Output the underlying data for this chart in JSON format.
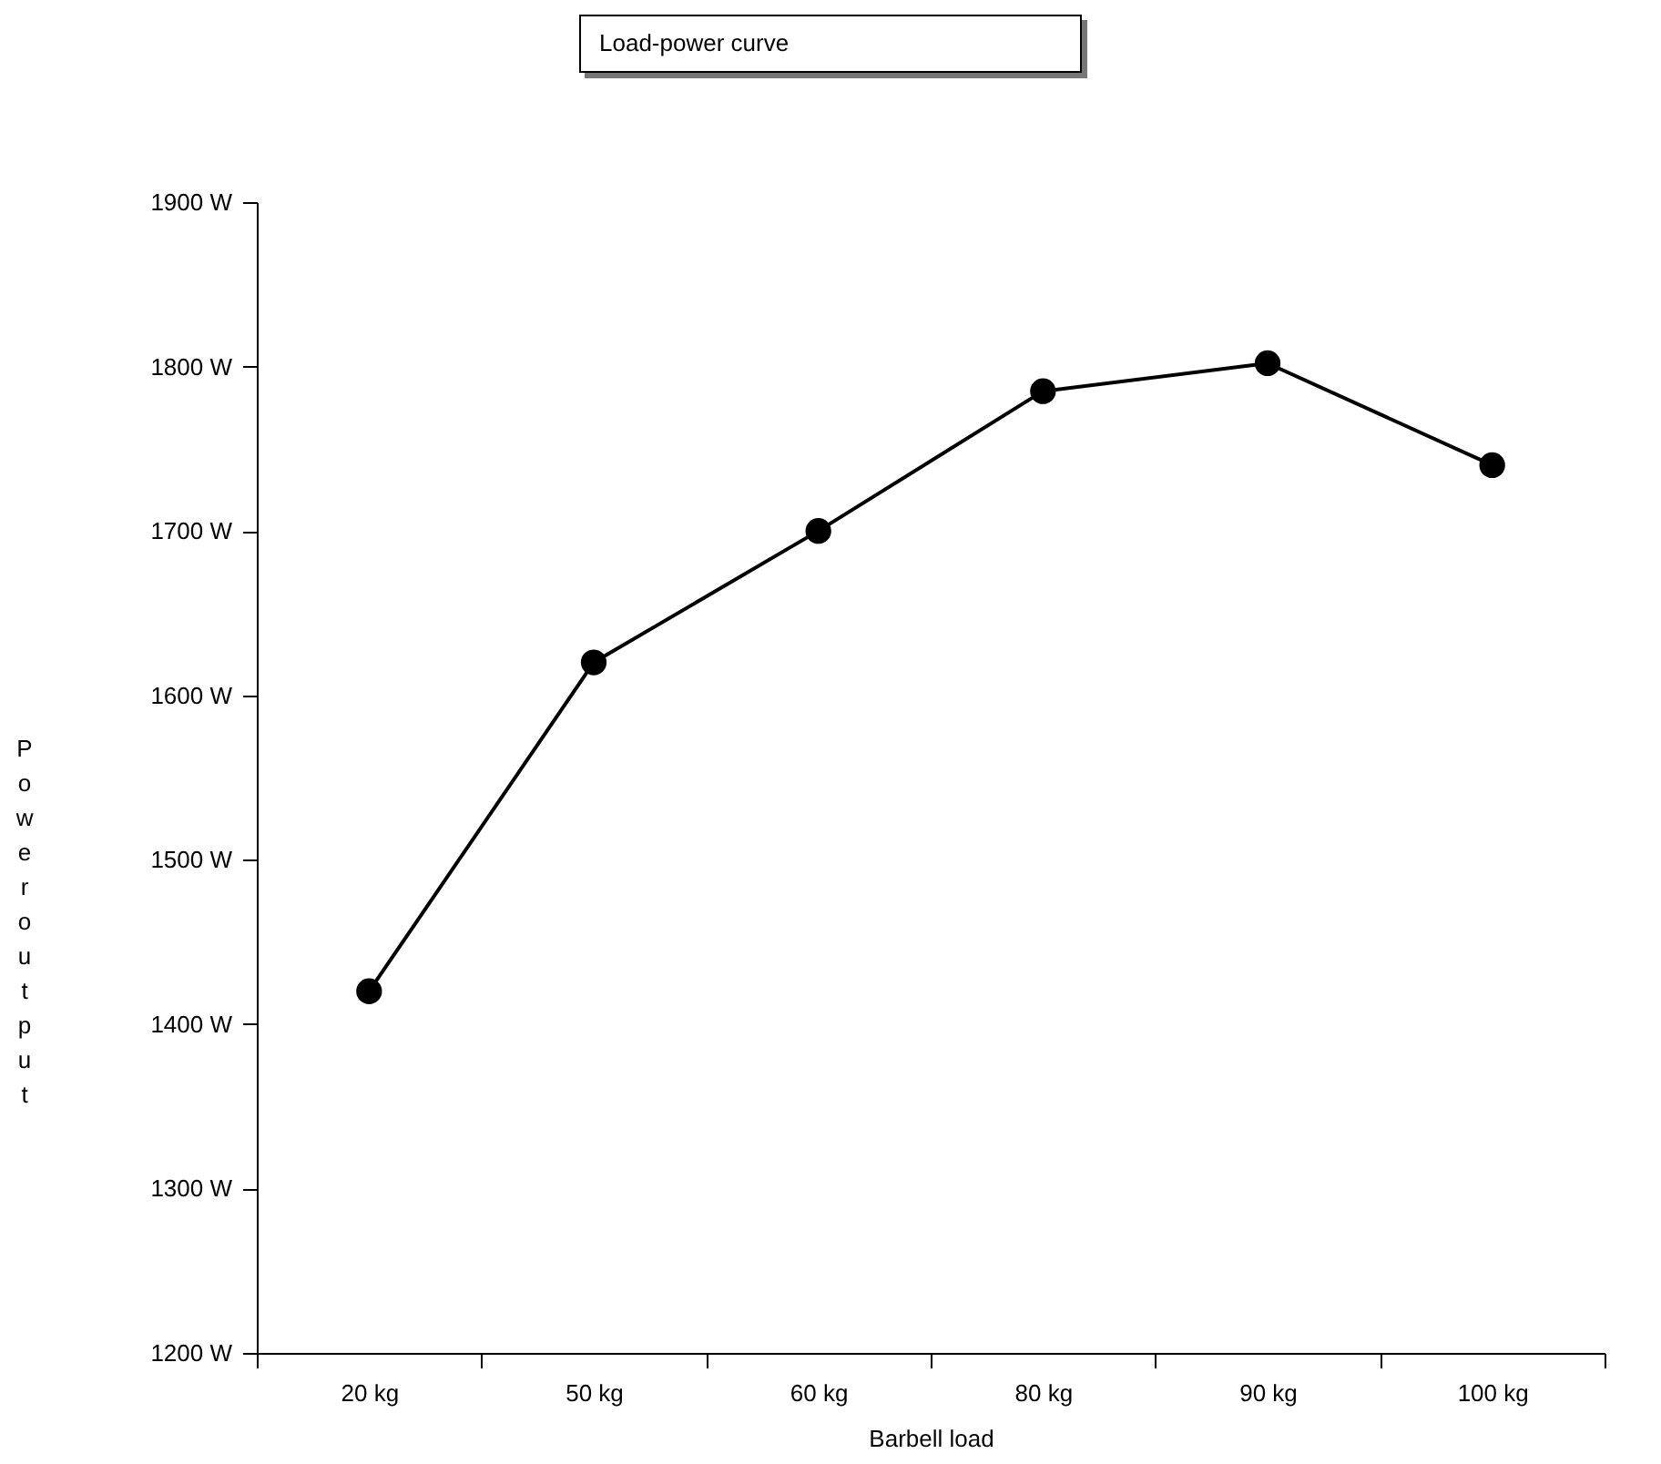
{
  "chart_data": {
    "type": "line",
    "title": "Load-power curve",
    "xlabel": "Barbell load",
    "ylabel": "Power output",
    "categories": [
      "20 kg",
      "50 kg",
      "60 kg",
      "80 kg",
      "90 kg",
      "100 kg"
    ],
    "series": [
      {
        "color": "#000000",
        "values": [
          1420,
          1620,
          1700,
          1785,
          1802,
          1740
        ]
      }
    ],
    "ylim": [
      1200,
      1900
    ],
    "yticks": [
      {
        "value": 1200,
        "label": "1200 W"
      },
      {
        "value": 1300,
        "label": "1300 W"
      },
      {
        "value": 1400,
        "label": "1400 W"
      },
      {
        "value": 1500,
        "label": "1500 W"
      },
      {
        "value": 1600,
        "label": "1600 W"
      },
      {
        "value": 1700,
        "label": "1700 W"
      },
      {
        "value": 1800,
        "label": "1800 W"
      },
      {
        "value": 1900,
        "label": "1900 W"
      }
    ],
    "marker": "circle",
    "line_style": "solid"
  }
}
